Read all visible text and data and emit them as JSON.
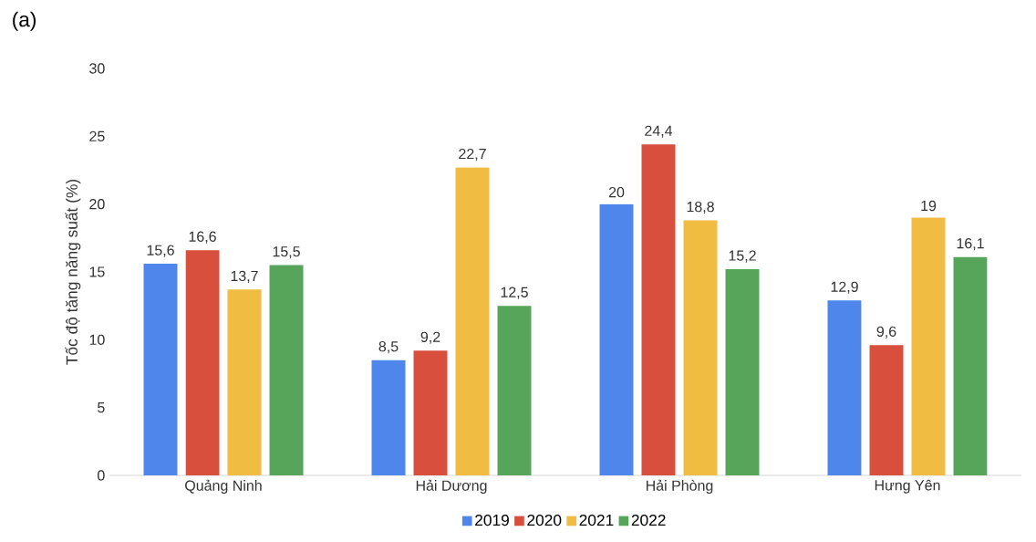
{
  "chart_data": {
    "type": "bar",
    "ylabel": "Tốc độ tăng năng suất (%)",
    "annotations": [
      "(a)"
    ],
    "categories": [
      "Quảng Ninh",
      "Hải Dương",
      "Hải Phòng",
      "Hưng Yên"
    ],
    "series": [
      {
        "name": "2019",
        "color": "#4e86ec",
        "values": [
          15.6,
          8.5,
          20,
          12.9
        ],
        "value_labels": [
          "15,6",
          "8,5",
          "20",
          "12,9"
        ]
      },
      {
        "name": "2020",
        "color": "#d94f3d",
        "values": [
          16.6,
          9.2,
          24.4,
          9.6
        ],
        "value_labels": [
          "16,6",
          "9,2",
          "24,4",
          "9,6"
        ]
      },
      {
        "name": "2021",
        "color": "#f0bc41",
        "values": [
          13.7,
          22.7,
          18.8,
          19
        ],
        "value_labels": [
          "13,7",
          "22,7",
          "18,8",
          "19"
        ]
      },
      {
        "name": "2022",
        "color": "#57a55a",
        "values": [
          15.5,
          12.5,
          15.2,
          16.1
        ],
        "value_labels": [
          "15,5",
          "12,5",
          "15,2",
          "16,1"
        ]
      }
    ],
    "ylim": [
      0,
      30
    ],
    "yticks": [
      0,
      5,
      10,
      15,
      20,
      25,
      30
    ],
    "grid": false,
    "legend": "bottom"
  }
}
